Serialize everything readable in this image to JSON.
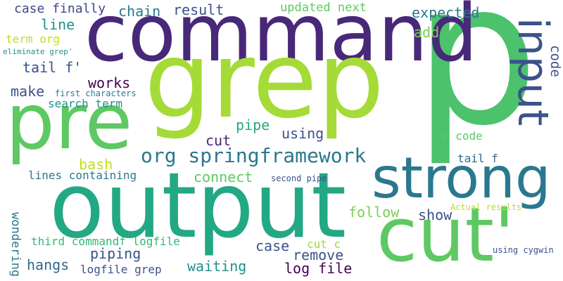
{
  "words": [
    {
      "text": "p",
      "color": "#4cc26c"
    },
    {
      "text": "command",
      "color": "#482878"
    },
    {
      "text": "grep",
      "color": "#a5db36"
    },
    {
      "text": "pre",
      "color": "#5ec962"
    },
    {
      "text": "output",
      "color": "#22a884"
    },
    {
      "text": "strong",
      "color": "#2a788e"
    },
    {
      "text": "input",
      "color": "#3b528b"
    },
    {
      "text": "cut'",
      "color": "#5ec962"
    },
    {
      "text": "org springframework",
      "color": "#2a788e"
    },
    {
      "text": "code",
      "color": "#3b528b"
    },
    {
      "text": "case finally",
      "color": "#414487"
    },
    {
      "text": "chain",
      "color": "#2a788e"
    },
    {
      "text": "result",
      "color": "#3b528b"
    },
    {
      "text": "updated next",
      "color": "#5ec962"
    },
    {
      "text": "expected",
      "color": "#2a788e"
    },
    {
      "text": "line",
      "color": "#21918c"
    },
    {
      "text": "add",
      "color": "#7ad151"
    },
    {
      "text": "term org",
      "color": "#bddf26"
    },
    {
      "text": "eliminate grep'",
      "color": "#21918c"
    },
    {
      "text": "tail f'",
      "color": "#3b528b"
    },
    {
      "text": "works",
      "color": "#440154"
    },
    {
      "text": "make",
      "color": "#3b528b"
    },
    {
      "text": "first characters",
      "color": "#2a788e"
    },
    {
      "text": "search term",
      "color": "#21918c"
    },
    {
      "text": "cut",
      "color": "#482878"
    },
    {
      "text": "pipe",
      "color": "#22a884"
    },
    {
      "text": "using",
      "color": "#3b528b"
    },
    {
      "text": "c code",
      "color": "#5ec962"
    },
    {
      "text": "bash",
      "color": "#bddf26"
    },
    {
      "text": "tail f",
      "color": "#31688e"
    },
    {
      "text": "connect",
      "color": "#5ec962"
    },
    {
      "text": "lines containing",
      "color": "#2a788e"
    },
    {
      "text": "second pipe",
      "color": "#3b528b"
    },
    {
      "text": "follow",
      "color": "#7ad151"
    },
    {
      "text": "show",
      "color": "#3b528b"
    },
    {
      "text": "Actual results",
      "color": "#b5de2b"
    },
    {
      "text": "wondering",
      "color": "#2a788e"
    },
    {
      "text": "third commandf logfile",
      "color": "#35b779"
    },
    {
      "text": "case",
      "color": "#3b528b"
    },
    {
      "text": "cut c",
      "color": "#a0da39"
    },
    {
      "text": "piping",
      "color": "#3b528b"
    },
    {
      "text": "remove",
      "color": "#3b528b"
    },
    {
      "text": "hangs",
      "color": "#31688e"
    },
    {
      "text": "logfile grep",
      "color": "#3b528b"
    },
    {
      "text": "waiting",
      "color": "#21918c"
    },
    {
      "text": "log file",
      "color": "#440154"
    },
    {
      "text": "using cygwin",
      "color": "#3b528b"
    }
  ]
}
